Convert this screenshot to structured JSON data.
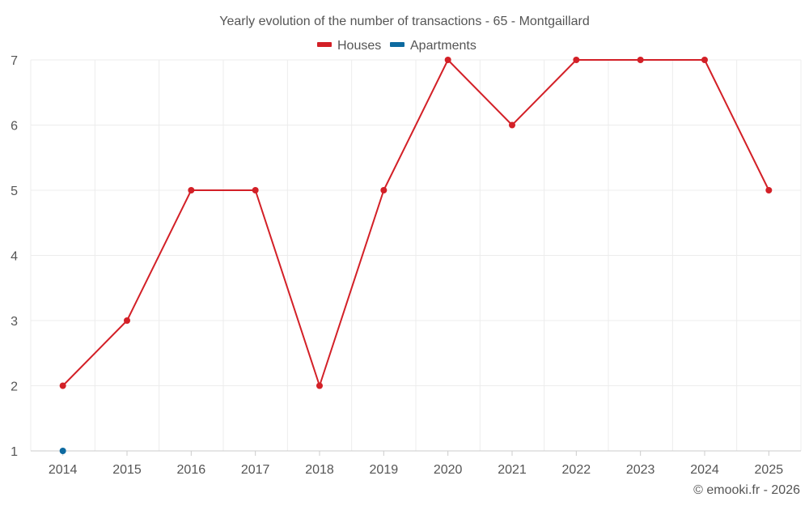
{
  "chart_data": {
    "type": "line",
    "title": "Yearly evolution of the number of transactions - 65 - Montgaillard",
    "xlabel": "",
    "ylabel": "",
    "categories": [
      "2014",
      "2015",
      "2016",
      "2017",
      "2018",
      "2019",
      "2020",
      "2021",
      "2022",
      "2023",
      "2024",
      "2025"
    ],
    "y_ticks": [
      1,
      2,
      3,
      4,
      5,
      6,
      7
    ],
    "ylim": [
      1,
      7
    ],
    "grid": true,
    "legend_position": "top-center",
    "series": [
      {
        "name": "Houses",
        "color": "#d32027",
        "values": [
          2,
          3,
          5,
          5,
          2,
          5,
          7,
          6,
          7,
          7,
          7,
          5
        ]
      },
      {
        "name": "Apartments",
        "color": "#0d6aa0",
        "values": [
          1,
          null,
          null,
          null,
          null,
          null,
          null,
          null,
          null,
          null,
          null,
          null
        ]
      }
    ],
    "credit": "© emooki.fr - 2026"
  }
}
